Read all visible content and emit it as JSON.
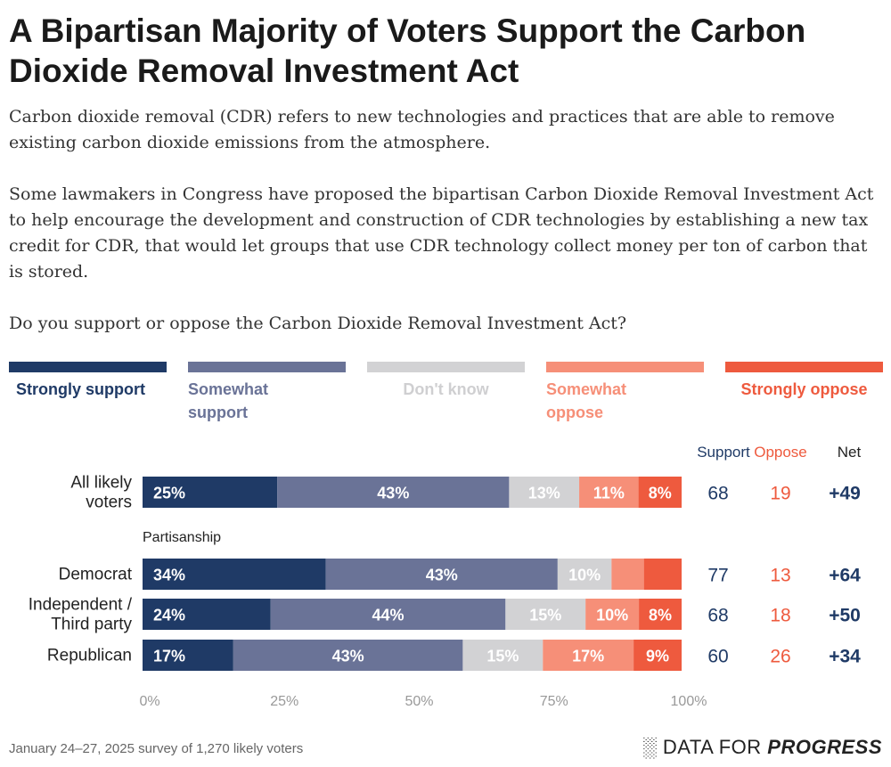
{
  "title": "A Bipartisan Majority of Voters Support the Carbon Dioxide Removal Investment Act",
  "paragraphs": [
    "Carbon dioxide removal (CDR) refers to new technologies and practices that are able to remove existing carbon dioxide emissions from the atmosphere.",
    "Some lawmakers in Congress have proposed the bipartisan Carbon Dioxide Removal Investment Act to help encourage the development and construction of CDR technologies by establishing a new tax credit for CDR, that would let groups that use CDR technology collect money per ton of carbon that is stored.",
    "Do you support or oppose the Carbon Dioxide Removal Investment Act?"
  ],
  "footer": "January 24–27, 2025 survey of 1,270 likely voters",
  "logo": {
    "text_regular": "DATA FOR",
    "text_bold": "PROGRESS"
  },
  "chart_data": {
    "type": "bar",
    "orientation": "horizontal",
    "stacked": true,
    "series": [
      {
        "name": "Strongly support",
        "color": "#1f3a66",
        "text_color": "#1f3a66"
      },
      {
        "name": "Somewhat support",
        "color": "#6a7397",
        "text_color": "#6a7397"
      },
      {
        "name": "Don't know",
        "color": "#d2d2d4",
        "text_color": "#cfcfd1"
      },
      {
        "name": "Somewhat oppose",
        "color": "#f68f78",
        "text_color": "#f68f78"
      },
      {
        "name": "Strongly oppose",
        "color": "#ee5a3e",
        "text_color": "#ee5a3e"
      }
    ],
    "group_label": "Partisanship",
    "columns": {
      "support": "Support",
      "oppose": "Oppose",
      "net": "Net"
    },
    "rows": [
      {
        "label": "All likely voters",
        "values": [
          25,
          43,
          13,
          11,
          8
        ],
        "labels": [
          "25%",
          "43%",
          "13%",
          "11%",
          "8%"
        ],
        "support": "68",
        "oppose": "19",
        "net": "+49"
      },
      {
        "label": "Democrat",
        "values": [
          34,
          43,
          10,
          6,
          7
        ],
        "labels": [
          "34%",
          "43%",
          "10%",
          "",
          ""
        ],
        "support": "77",
        "oppose": "13",
        "net": "+64"
      },
      {
        "label": "Independent / Third party",
        "values": [
          24,
          44,
          15,
          10,
          8
        ],
        "labels": [
          "24%",
          "44%",
          "15%",
          "10%",
          "8%"
        ],
        "support": "68",
        "oppose": "18",
        "net": "+50"
      },
      {
        "label": "Republican",
        "values": [
          17,
          43,
          15,
          17,
          9
        ],
        "labels": [
          "17%",
          "43%",
          "15%",
          "17%",
          "9%"
        ],
        "support": "60",
        "oppose": "26",
        "net": "+34"
      }
    ],
    "xticks": [
      "0%",
      "25%",
      "50%",
      "75%",
      "100%"
    ],
    "xlim": [
      0,
      100
    ]
  }
}
